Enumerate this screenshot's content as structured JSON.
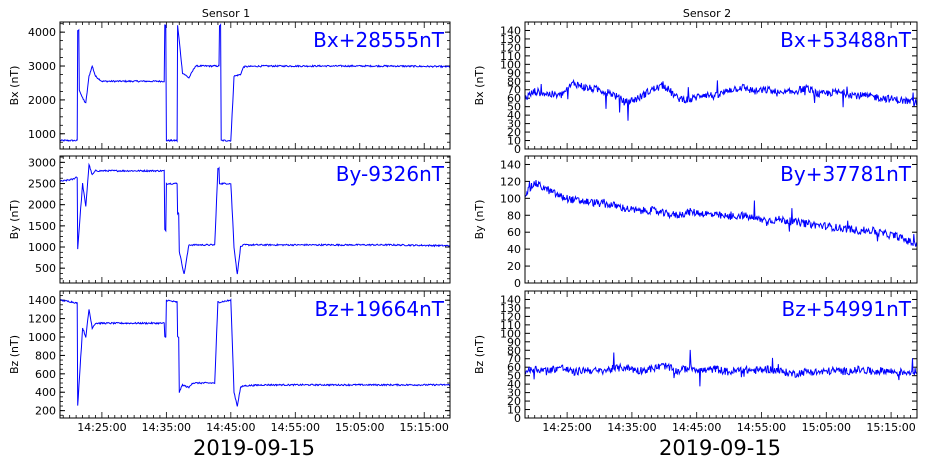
{
  "figure": {
    "columns": [
      {
        "title": "Sensor 1",
        "date_label": "2019-09-15"
      },
      {
        "title": "Sensor 2",
        "date_label": "2019-09-15"
      }
    ],
    "x_tick_labels": [
      "14:25:00",
      "14:35:00",
      "14:45:00",
      "14:55:00",
      "15:05:00",
      "15:15:00"
    ]
  },
  "chart_data": [
    {
      "type": "line",
      "sensor": "Sensor 1",
      "component": "Bx",
      "ylabel": "Bx (nT)",
      "offset_label": "Bx+28555nT",
      "xlim": [
        "14:18:30",
        "15:19:00"
      ],
      "ylim": [
        550,
        4300
      ],
      "yticks": [
        1000,
        2000,
        3000,
        4000
      ],
      "color": "#0000ff",
      "series": [
        {
          "x": [
            "14:18:30",
            "14:21:00",
            "14:21:15",
            "14:21:30",
            "14:22:00",
            "14:22:30",
            "14:23:00",
            "14:23:30",
            "14:24:00",
            "14:25:00",
            "14:28:00",
            "14:32:00",
            "14:34:30",
            "14:34:45",
            "14:35:00",
            "14:36:30",
            "14:36:45",
            "14:37:30",
            "14:38:30",
            "14:39:30",
            "14:40:00",
            "14:42:00",
            "14:43:00",
            "14:43:15",
            "14:43:30",
            "14:45:00",
            "14:45:30",
            "14:46:30",
            "14:47:00",
            "14:50:00",
            "15:00:00",
            "15:10:00",
            "15:19:00"
          ],
          "y": [
            800,
            800,
            4050,
            2300,
            2050,
            1900,
            2700,
            3000,
            2700,
            2550,
            2550,
            2550,
            2550,
            4200,
            800,
            800,
            4200,
            2800,
            2650,
            3000,
            3000,
            3000,
            3000,
            4200,
            800,
            800,
            2700,
            2750,
            2980,
            3000,
            3000,
            3000,
            2980
          ]
        }
      ]
    },
    {
      "type": "line",
      "sensor": "Sensor 1",
      "component": "By",
      "ylabel": "By (nT)",
      "offset_label": "By-9326nT",
      "xlim": [
        "14:18:30",
        "15:19:00"
      ],
      "ylim": [
        150,
        3150
      ],
      "yticks": [
        500,
        1000,
        1500,
        2000,
        2500,
        3000
      ],
      "color": "#0000ff",
      "series": [
        {
          "x": [
            "14:18:30",
            "14:20:30",
            "14:21:00",
            "14:21:15",
            "14:22:00",
            "14:22:30",
            "14:23:00",
            "14:23:30",
            "14:24:00",
            "14:25:00",
            "14:30:00",
            "14:34:30",
            "14:34:45",
            "14:35:00",
            "14:36:30",
            "14:36:45",
            "14:37:00",
            "14:37:45",
            "14:38:30",
            "14:39:00",
            "14:42:30",
            "14:43:00",
            "14:43:15",
            "14:45:00",
            "14:45:30",
            "14:46:00",
            "14:46:30",
            "14:47:00",
            "14:50:00",
            "15:00:00",
            "15:10:00",
            "15:19:00"
          ],
          "y": [
            2550,
            2600,
            2650,
            950,
            2500,
            1950,
            2950,
            2700,
            2800,
            2800,
            2800,
            2800,
            1400,
            2500,
            2500,
            1800,
            900,
            350,
            1050,
            1050,
            1050,
            2850,
            2500,
            2500,
            1000,
            350,
            1000,
            1050,
            1050,
            1050,
            1050,
            1030
          ]
        }
      ]
    },
    {
      "type": "line",
      "sensor": "Sensor 1",
      "component": "Bz",
      "ylabel": "Bz (nT)",
      "offset_label": "Bz+19664nT",
      "xlim": [
        "14:18:30",
        "15:19:00"
      ],
      "ylim": [
        120,
        1500
      ],
      "yticks": [
        200,
        400,
        600,
        800,
        1000,
        1200,
        1400
      ],
      "color": "#0000ff",
      "series": [
        {
          "x": [
            "14:18:30",
            "14:20:30",
            "14:21:00",
            "14:21:15",
            "14:22:00",
            "14:22:30",
            "14:23:00",
            "14:23:30",
            "14:24:00",
            "14:25:00",
            "14:30:00",
            "14:34:30",
            "14:34:45",
            "14:35:00",
            "14:36:30",
            "14:36:45",
            "14:37:00",
            "14:37:30",
            "14:38:30",
            "14:39:00",
            "14:42:30",
            "14:43:00",
            "14:43:15",
            "14:45:00",
            "14:45:30",
            "14:46:00",
            "14:46:30",
            "14:47:00",
            "14:50:00",
            "15:00:00",
            "15:10:00",
            "15:19:00"
          ],
          "y": [
            1400,
            1380,
            1370,
            250,
            1100,
            1000,
            1300,
            1100,
            1150,
            1150,
            1150,
            1150,
            1000,
            1400,
            1380,
            1000,
            400,
            480,
            450,
            500,
            500,
            1380,
            1380,
            1400,
            400,
            250,
            450,
            470,
            480,
            480,
            480,
            480
          ]
        }
      ]
    },
    {
      "type": "line",
      "sensor": "Sensor 2",
      "component": "Bx",
      "ylabel": "Bx (nT)",
      "offset_label": "Bx+53488nT",
      "xlim": [
        "14:18:30",
        "15:19:00"
      ],
      "ylim": [
        0,
        150
      ],
      "yticks": [
        0,
        10,
        20,
        30,
        40,
        50,
        60,
        70,
        80,
        90,
        100,
        110,
        120,
        130,
        140
      ],
      "color": "#0000ff",
      "series": [
        {
          "x": [
            "14:18:30",
            "14:20:00",
            "14:22:00",
            "14:24:00",
            "14:26:00",
            "14:28:00",
            "14:30:00",
            "14:32:00",
            "14:34:00",
            "14:36:00",
            "14:38:00",
            "14:40:00",
            "14:42:00",
            "14:44:00",
            "14:46:00",
            "14:48:00",
            "14:50:00",
            "14:52:00",
            "14:54:00",
            "14:56:00",
            "14:58:00",
            "15:00:00",
            "15:02:00",
            "15:04:00",
            "15:06:00",
            "15:08:00",
            "15:10:00",
            "15:12:00",
            "15:14:00",
            "15:16:00",
            "15:19:00"
          ],
          "y": [
            60,
            68,
            65,
            63,
            78,
            72,
            70,
            65,
            55,
            60,
            70,
            75,
            60,
            58,
            65,
            62,
            70,
            73,
            68,
            70,
            65,
            68,
            72,
            64,
            67,
            66,
            63,
            62,
            60,
            58,
            55
          ]
        }
      ]
    },
    {
      "type": "line",
      "sensor": "Sensor 2",
      "component": "By",
      "ylabel": "By (nT)",
      "offset_label": "By+37781nT",
      "xlim": [
        "14:18:30",
        "15:19:00"
      ],
      "ylim": [
        0,
        150
      ],
      "yticks": [
        0,
        20,
        40,
        60,
        80,
        100,
        120,
        140
      ],
      "color": "#0000ff",
      "series": [
        {
          "x": [
            "14:18:30",
            "14:20:00",
            "14:22:00",
            "14:24:00",
            "14:26:00",
            "14:28:00",
            "14:30:00",
            "14:32:00",
            "14:34:00",
            "14:36:00",
            "14:38:00",
            "14:40:00",
            "14:42:00",
            "14:44:00",
            "14:46:00",
            "14:48:00",
            "14:50:00",
            "14:52:00",
            "14:54:00",
            "14:56:00",
            "14:58:00",
            "15:00:00",
            "15:02:00",
            "15:04:00",
            "15:06:00",
            "15:08:00",
            "15:10:00",
            "15:12:00",
            "15:14:00",
            "15:16:00",
            "15:19:00"
          ],
          "y": [
            105,
            118,
            110,
            102,
            98,
            96,
            94,
            92,
            88,
            85,
            86,
            82,
            80,
            84,
            82,
            80,
            78,
            80,
            76,
            74,
            75,
            72,
            70,
            68,
            66,
            64,
            62,
            62,
            58,
            55,
            45
          ]
        }
      ]
    },
    {
      "type": "line",
      "sensor": "Sensor 2",
      "component": "Bz",
      "ylabel": "Bz (nT)",
      "offset_label": "Bz+54991nT",
      "xlim": [
        "14:18:30",
        "15:19:00"
      ],
      "ylim": [
        0,
        150
      ],
      "yticks": [
        0,
        10,
        20,
        30,
        40,
        50,
        60,
        70,
        80,
        90,
        100,
        110,
        120,
        130,
        140
      ],
      "color": "#0000ff",
      "series": [
        {
          "x": [
            "14:18:30",
            "14:20:00",
            "14:22:00",
            "14:24:00",
            "14:26:00",
            "14:28:00",
            "14:30:00",
            "14:32:00",
            "14:34:00",
            "14:36:00",
            "14:38:00",
            "14:40:00",
            "14:42:00",
            "14:44:00",
            "14:46:00",
            "14:48:00",
            "14:50:00",
            "14:52:00",
            "14:54:00",
            "14:56:00",
            "14:58:00",
            "15:00:00",
            "15:02:00",
            "15:04:00",
            "15:06:00",
            "15:08:00",
            "15:10:00",
            "15:12:00",
            "15:14:00",
            "15:16:00",
            "15:19:00"
          ],
          "y": [
            55,
            58,
            56,
            60,
            54,
            57,
            55,
            58,
            60,
            56,
            58,
            62,
            55,
            60,
            56,
            58,
            54,
            57,
            56,
            58,
            55,
            52,
            55,
            54,
            56,
            55,
            57,
            55,
            56,
            54,
            55
          ]
        }
      ]
    }
  ]
}
